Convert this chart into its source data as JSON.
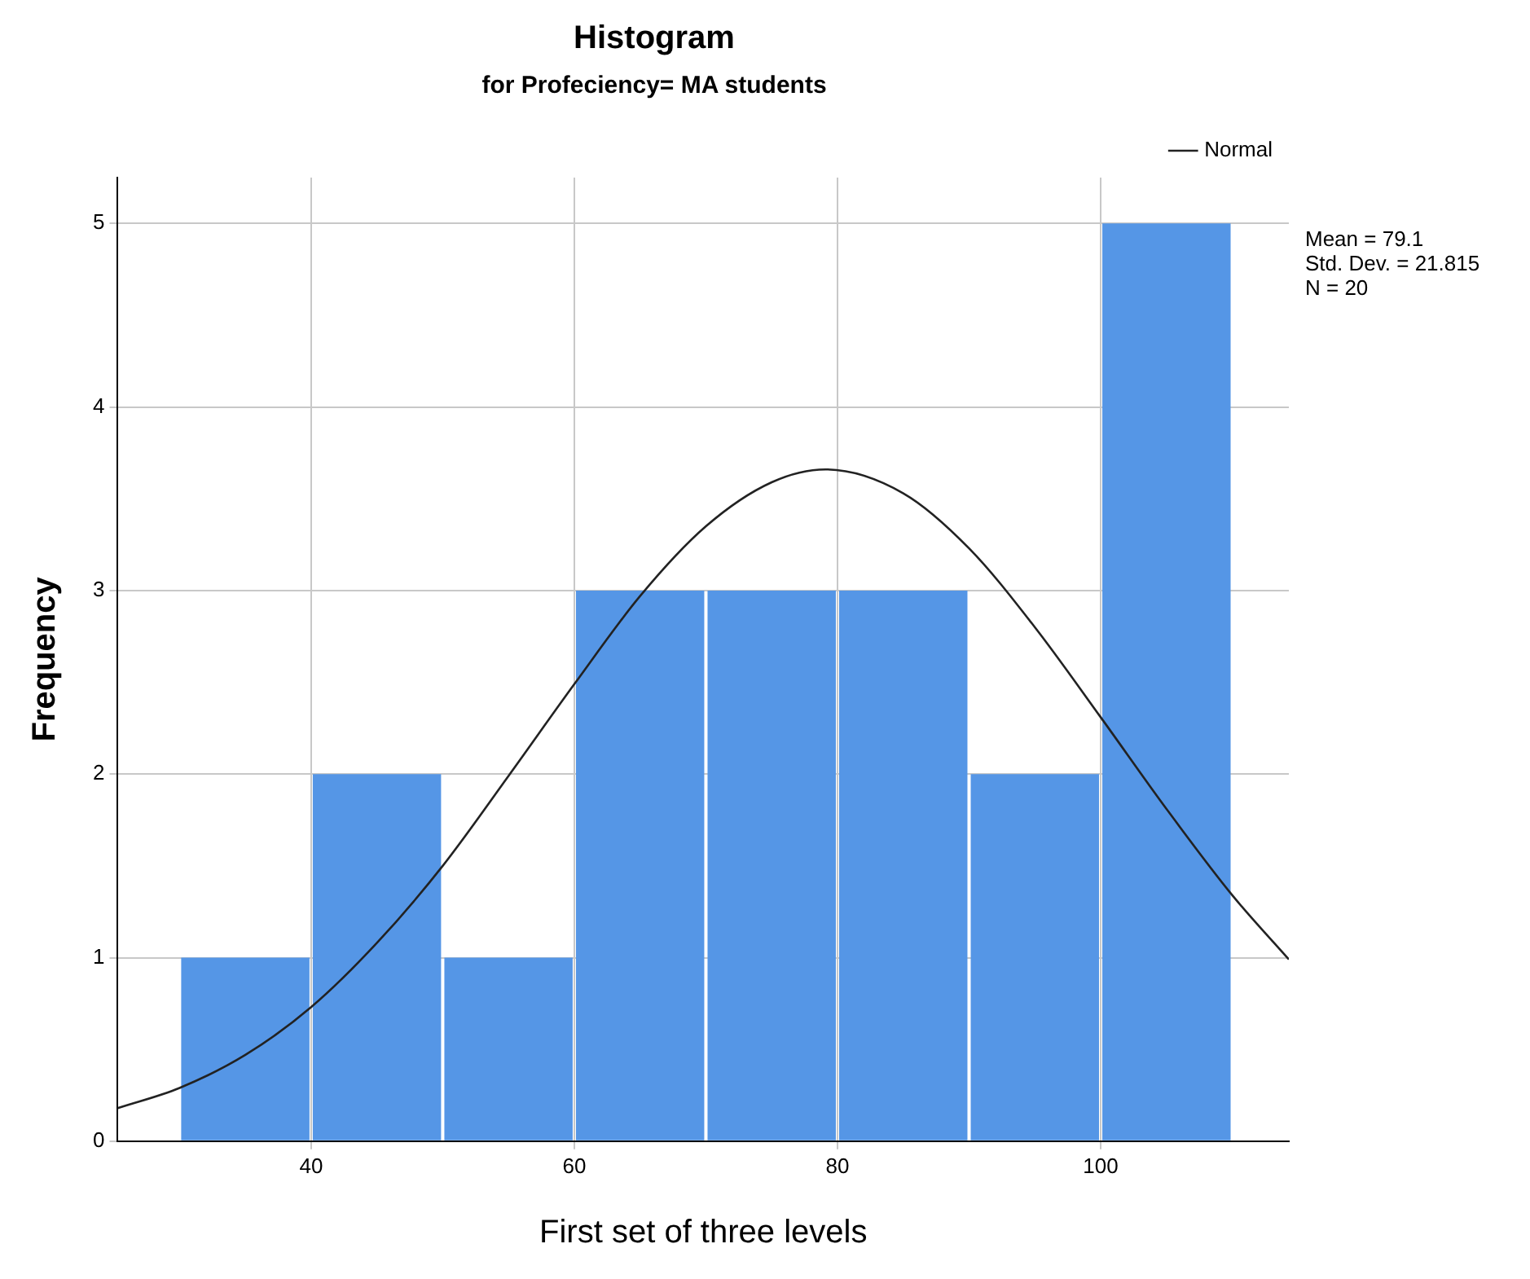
{
  "chart_data": {
    "type": "histogram",
    "title": "Histogram",
    "subtitle": "for Profeciency= MA students",
    "xlabel": "First set of three levels",
    "ylabel": "Frequency",
    "bins": [
      30,
      40,
      50,
      60,
      70,
      80,
      90,
      100,
      110
    ],
    "values": [
      1,
      2,
      1,
      3,
      3,
      3,
      2,
      5
    ],
    "color": "#5596e6",
    "series": [
      {
        "name": "Normal",
        "type": "line",
        "color": "#222222",
        "x": [
          25.3,
          30,
          35,
          40,
          45,
          50,
          55,
          60,
          65,
          70,
          75,
          79.1,
          85,
          90,
          95,
          100,
          105,
          110,
          114.3
        ],
        "values": [
          0.18,
          0.29,
          0.47,
          0.73,
          1.08,
          1.5,
          1.99,
          2.49,
          2.97,
          3.35,
          3.59,
          3.66,
          3.53,
          3.23,
          2.8,
          2.31,
          1.81,
          1.34,
          0.99
        ]
      }
    ],
    "xlim": [
      25.3,
      114.3
    ],
    "xticks": [
      40,
      60,
      80,
      100
    ],
    "ylim": [
      0,
      5.25
    ],
    "yticks": [
      0,
      1,
      2,
      3,
      4,
      5
    ],
    "annotations": [
      "Mean = 79.1",
      "Std. Dev. = 21.815",
      "N = 20"
    ],
    "grid": true,
    "legend": "top right",
    "marker": "none",
    "line_style": "solid"
  }
}
